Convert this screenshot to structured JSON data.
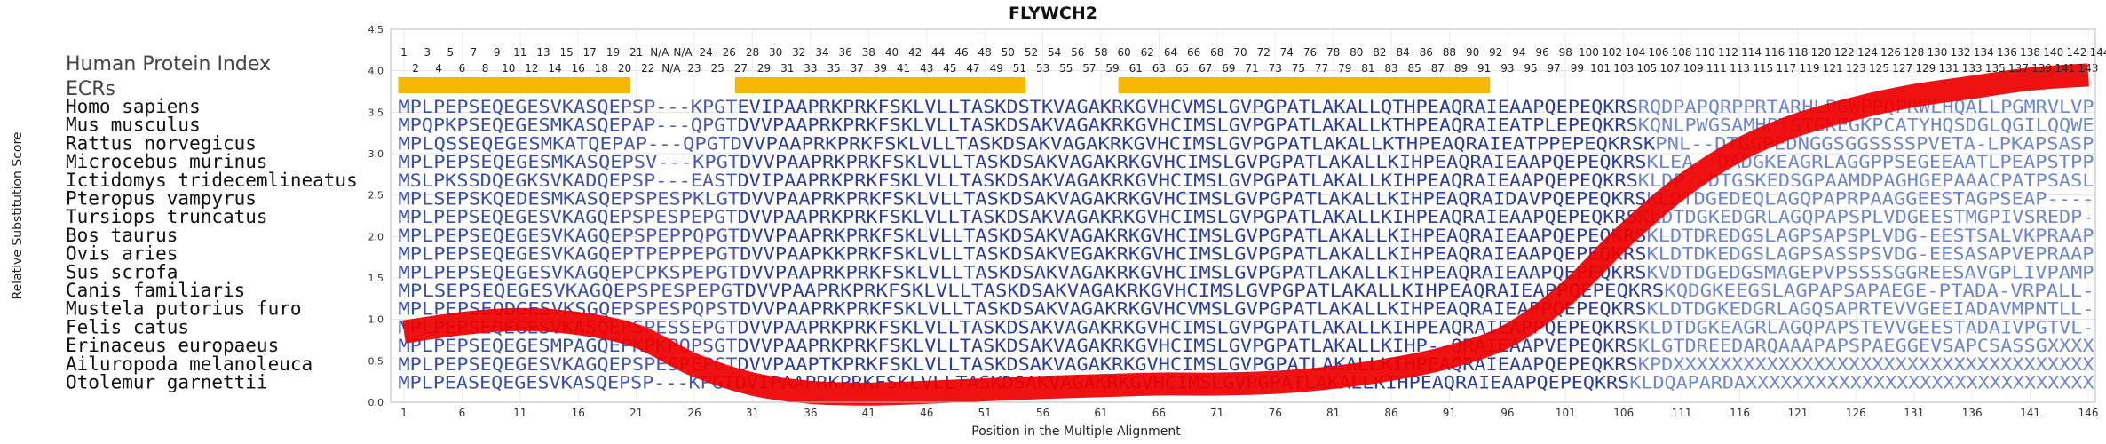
{
  "chart_data": {
    "type": "line",
    "title": "FLYWCH2",
    "xlabel": "Position in the Multiple Alignment",
    "ylabel": "Relative Substitution Score",
    "ylim": [
      0,
      4.5
    ],
    "xlim": [
      1,
      146
    ],
    "yticks": [
      "0.0",
      "0.5",
      "1.0",
      "1.5",
      "2.0",
      "2.5",
      "3.0",
      "3.5",
      "4.0",
      "4.5"
    ],
    "xticks": [
      "1",
      "6",
      "11",
      "16",
      "21",
      "26",
      "31",
      "36",
      "41",
      "46",
      "51",
      "56",
      "61",
      "66",
      "71",
      "76",
      "81",
      "86",
      "91",
      "96",
      "101",
      "106",
      "111",
      "116",
      "121",
      "126",
      "131",
      "136",
      "141",
      "146"
    ],
    "grid": true,
    "series_color": "#ee0000",
    "ecr_color": "#f5b800",
    "substitution_score": {
      "x": [
        1,
        6,
        11,
        16,
        21,
        26,
        31,
        36,
        41,
        46,
        51,
        56,
        61,
        66,
        71,
        76,
        81,
        86,
        91,
        96,
        101,
        106,
        111,
        116,
        121,
        126,
        131,
        136,
        141,
        146
      ],
      "y": [
        0.85,
        0.95,
        1.0,
        0.95,
        0.8,
        0.45,
        0.22,
        0.12,
        0.1,
        0.12,
        0.15,
        0.18,
        0.2,
        0.22,
        0.22,
        0.24,
        0.3,
        0.4,
        0.55,
        0.8,
        1.3,
        2.0,
        2.6,
        3.05,
        3.35,
        3.55,
        3.7,
        3.8,
        3.9,
        3.95
      ]
    },
    "ecrs": [
      [
        1,
        20
      ],
      [
        30,
        54
      ],
      [
        63,
        94
      ]
    ],
    "human_protein_index_label": "Human Protein Index",
    "ecrs_label": "ECRs",
    "hpi_top": [
      "1",
      "3",
      "5",
      "7",
      "9",
      "11",
      "13",
      "15",
      "17",
      "19",
      "21",
      "N/A",
      "N/A",
      "24",
      "26",
      "28",
      "30",
      "32",
      "34",
      "36",
      "38",
      "40",
      "42",
      "44",
      "46",
      "48",
      "50",
      "52",
      "54",
      "56",
      "58",
      "60",
      "62",
      "64",
      "66",
      "68",
      "70",
      "72",
      "74",
      "76",
      "78",
      "80",
      "82",
      "84",
      "86",
      "88",
      "90",
      "92",
      "94",
      "96",
      "98",
      "100",
      "102",
      "104",
      "106",
      "108",
      "110",
      "112",
      "114",
      "116",
      "118",
      "120",
      "122",
      "124",
      "126",
      "128",
      "130",
      "132",
      "134",
      "136",
      "138",
      "140",
      "142",
      "144"
    ],
    "hpi_bottom": [
      "2",
      "4",
      "6",
      "8",
      "10",
      "12",
      "14",
      "16",
      "18",
      "20",
      "22",
      "N/A",
      "23",
      "25",
      "27",
      "29",
      "31",
      "33",
      "35",
      "37",
      "39",
      "41",
      "43",
      "45",
      "47",
      "49",
      "51",
      "53",
      "55",
      "57",
      "59",
      "61",
      "63",
      "65",
      "67",
      "69",
      "71",
      "73",
      "75",
      "77",
      "79",
      "81",
      "83",
      "85",
      "87",
      "89",
      "91",
      "93",
      "95",
      "97",
      "99",
      "101",
      "103",
      "105",
      "107",
      "109",
      "111",
      "113",
      "115",
      "117",
      "119",
      "121",
      "123",
      "125",
      "127",
      "129",
      "131",
      "133",
      "135",
      "137",
      "139",
      "141",
      "143"
    ],
    "alignment": [
      {
        "species": "Homo sapiens",
        "sequence": "MPLPEPSEQEGESVKASQEPSP---KPGTEVIPAAPRKPRKFSKLVLLTASKDSTKVAGAKRKGVHCVMSLGVPGPATLAKALLQTHPEAQRAIEAAPQEPEQKRSRQDPAPQRPPRTARHLPGWPPQPRWLHQALLPGMRVLVP"
      },
      {
        "species": "Mus musculus",
        "sequence": "MPQPKPSEQEGESMKASQEPAP---QPGTDVVPAAPRKPRKFSKLVLLTASKDSAKVAGAKRKGVHCIMSLGVPGPATLAKALLKTHPEAQRAIEATPLEPEQKRSKQNLPWGSAMHPTSTGKEGKPCATYHQSDGLQGILQQWE"
      },
      {
        "species": "Rattus norvegicus",
        "sequence": "MPLQSSEQEGESMKATQEPAP---QPGTDVVPAAPRKPRKFSKLVLLTASKDSAKVAGAKRKGVHCIMSLGVPGPATLAKALLKTHPEAQRAIEATPPEPEQKRSKPNL--DTGGPEDNGGSGGSSSSPVETA-LPKAPSASP"
      },
      {
        "species": "Microcebus murinus",
        "sequence": "MPLPEPSEQEGESMKASQEPSV---KPGTDVVPAAPRKPRKFSKLVLLTASKDSAKVAGAKRKGVHCIMSLGVPGPATLAKALLKIHPEAQRAIEAAPQEPEQKRSKLEA--DADGKEAGRLAGGPPSEGEEAATLPEAPSTPP"
      },
      {
        "species": "Ictidomys tridecemlineatus",
        "sequence": "MSLPKSSDQEGKSVKADQEPSP---EASTDVIPAAPRKPRKFSKLVLLTASKDSAKVAGAKRKGVHCIMSLGVPGPATLAKALLKIHPEAQRAIEAAPQEPEQKRSKLDP--DTGSKEDSGPAAMDPAGHGEPAAACPATPSASL"
      },
      {
        "species": "Pteropus vampyrus",
        "sequence": "MPLSEPSKQEDESMKASQEPSPESPKLGTDVVPAAPRKPRKFSKLVLLTASKDSAKVAGAKRKGVHCIMSLGVPGPATLAKALLKIHPEAQRAIDAVPQEPEQKRSKLDTDGEDEQLAGQPAPRPAAGGEESTAGPSEAP----"
      },
      {
        "species": "Tursiops truncatus",
        "sequence": "MPLPEPSEQEGESVKAGQEPSPESPEPGTDVVPAAPRKPRKFSKLVLLTASKDSAKVAGAKRKGVHCIMSLGVPGPATLAKALLKIHPEAQRAIEAAPQEPEQKRSKLDTDGKEDGRLAGQPAPSPLVDGEESTMGPIVSREDP-"
      },
      {
        "species": "Bos taurus",
        "sequence": "MPLPEPSEQEGESVKAGQEPSPEPPQPGTDVVPAAPRKPRKFSKLVLLTASKDSAKVAGAKRKGVHCIMSLGVPGPATLAKALLKIHPEAQRAIEAAPQEPEQKRSKLDTDREDGSLAGPSAPSPLVDG-EESTSALVKPRAAP"
      },
      {
        "species": "Ovis aries",
        "sequence": "MPLPEPSEQEGESVKAGQEPTPEPPEPGTDVVPAAPKKPRKFSKLVLLTASKDSAKVEGAKRKGVHCIMSLGVPGPATLAKALLKIHPEAQRAIEAAPQEPEQKRSKLDTDKEDGSLAGPSASSPSVDG-EESASAPVEPRAAP"
      },
      {
        "species": "Sus scrofa",
        "sequence": "MPLPEPSEQEGESVKAGQEPCPKSPEPGTDVVPAAPRKPRKFSKLVLLTASKDSAKVAGAKRKGVHCIMSLGVPGPATLAKALLKIHPEAQRAIEAAPQEPEQKRSKVDTDGEDGSMAGEPVPSSSSGGREESAVGPLIVPAMP"
      },
      {
        "species": "Canis familiaris",
        "sequence": "MPLSEPSEQEGESVKAGQEPSPESPEPGTDVVPAAPRKPRKFSKLVLLTASKDSAKVAGAKRKGVHCIMSLGVPGPATLAKALLKIHPEAQRAIEAPPQEPEQKRSKQDGKEEGSLAGPAPSAPAEGE-PTADA-VRPALL-"
      },
      {
        "species": "Mustela putorius furo",
        "sequence": "MPLPEPSEQDGESVKSGQEPSPESPQPSTDVVPAAPRKPRKFSKLVLLTASKDSAKVAGAKRKGVHCVMSLGVPGPATLAKALLKIHPEAQRAIEAPPQEPEQKRSKLDTDGKEDGRLAGQSAPRTEVVGEEIADAVMPNTLL-"
      },
      {
        "species": "Felis catus",
        "sequence": "MPLPEPSEQEGESVKASQEPSPESSEPGTDVVPAAPRKPRKFSKLVLLTASKDSAKVAGAKRKGVHCIMSLGVPGPATLAKALLKIHPEAQRAIEAPPQEPEQKRSKLDTDGKEAGRLAGQPAPSTEVVGEESTADAIVPGTVL-"
      },
      {
        "species": "Erinaceus europaeus",
        "sequence": "MPLPEPSEQEGESMPAGQEPKPKPQPSGTDVVPAAPRKPRKFSKLVLLTASKDSAKVAGAKRKGVHCIMSLGVPGPATLAKALLKIHP--QRAIEAAPVEPEQKRSKLGTDREEDARQAAAPAPSPAEGGEVSAPCSASSGXXXX"
      },
      {
        "species": "Ailuropoda melanoleuca",
        "sequence": "MPLPEPSEQEGESVKAGQEPSPESPEPGTDVVPAAPTKPRKFSKLVLLTASKDSAKVAGAKRKGVHCIMSLGVPGPATLAKALLKIHPEAQRAIEAAPQEPEQKRSKPDXXXXXXXXXXXXXXXXXXXXXXXXXXXXXXXXXXXX"
      },
      {
        "species": "Otolemur garnettii",
        "sequence": "MPLPEASEQEGESVKASQEPSP---KPGTDVIPAAPRKPRKFSKLVLLTASKDSAKVAGAKRKGVHCIMSLGVPGPATLAKALLKIHPEAQRAIEAAPQEPEQKRSKLDQAPARDAXXXXXXXXXXXXXXXXXXXXXXXXXXXXXXX"
      }
    ]
  }
}
